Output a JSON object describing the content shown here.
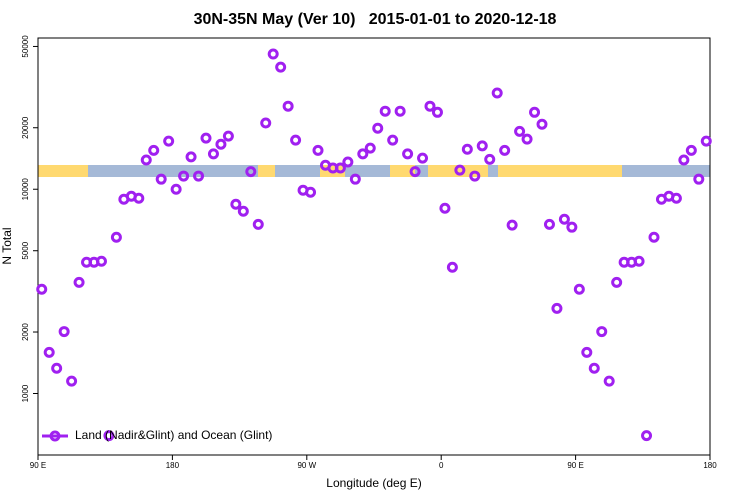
{
  "chart_data": {
    "type": "scatter",
    "title": "30N-35N May (Ver 10)   2015-01-01 to 2020-12-18",
    "x_label": "Longitude (deg E)",
    "y_label": "N Total",
    "xlim": [
      90,
      540
    ],
    "xticks": [
      {
        "value": 90,
        "label": "90 E"
      },
      180,
      {
        "value": 270,
        "label": "90 W"
      },
      {
        "value": 360,
        "label": "0"
      },
      {
        "value": 450,
        "label": "90 E"
      },
      {
        "value": 540,
        "label": "180"
      }
    ],
    "ylim": [
      500,
      55000
    ],
    "yticks": [
      1000,
      2000,
      5000,
      10000,
      20000,
      50000
    ],
    "ylog": true,
    "legend": "bottom-left",
    "series": [
      {
        "name": "Land (Nadir&Glint) and Ocean (Glint)",
        "color": "#a020f0",
        "x": [
          92.5,
          97.5,
          102.5,
          107.5,
          112.5,
          117.5,
          122.5,
          127.5,
          132.5,
          137.5,
          142.5,
          147.5,
          152.5,
          157.5,
          162.5,
          167.5,
          172.5,
          177.5,
          182.5,
          187.5,
          192.5,
          197.5,
          202.5,
          207.5,
          212.5,
          217.5,
          222.5,
          227.5,
          232.5,
          237.5,
          242.5,
          247.5,
          252.5,
          257.5,
          262.5,
          267.5,
          272.5,
          277.5,
          282.5,
          287.5,
          292.5,
          297.5,
          302.5,
          307.5,
          312.5,
          317.5,
          322.5,
          327.5,
          332.5,
          337.5,
          342.5,
          347.5,
          352.5,
          357.5,
          362.5,
          367.5,
          372.5,
          377.5,
          382.5,
          387.5,
          392.5,
          397.5,
          402.5,
          407.5,
          412.5,
          417.5,
          422.5,
          427.5,
          432.5,
          437.5,
          442.5,
          447.5,
          452.5,
          457.5,
          462.5,
          467.5,
          472.5,
          477.5,
          482.5,
          487.5,
          492.5,
          497.5,
          502.5,
          507.5,
          512.5,
          517.5,
          522.5,
          527.5,
          532.5,
          537.5
        ],
        "values": [
          3240,
          1590,
          1330,
          2010,
          1150,
          3500,
          4390,
          4390,
          4440,
          622,
          5820,
          8930,
          9240,
          9030,
          13900,
          15500,
          11200,
          17200,
          10000,
          11600,
          14400,
          11600,
          17800,
          14900,
          16600,
          18200,
          8440,
          7800,
          12200,
          6730,
          21100,
          45900,
          39600,
          25500,
          17400,
          9890,
          9670,
          15500,
          13100,
          12700,
          12700,
          13600,
          11200,
          14900,
          15900,
          19900,
          24100,
          17400,
          24100,
          14900,
          12200,
          14200,
          25500,
          23800,
          8070,
          4150,
          12400,
          15700,
          11600,
          16300,
          14000,
          29600,
          15500,
          6670,
          19200,
          17600,
          23800,
          20800,
          6730,
          2610,
          7130,
          6520,
          3240,
          1590,
          1330,
          2010,
          1150,
          3500,
          4390,
          4390,
          4440,
          622,
          5820,
          8930,
          9240,
          9030,
          13900,
          15500,
          11200,
          17200
        ]
      }
    ]
  }
}
